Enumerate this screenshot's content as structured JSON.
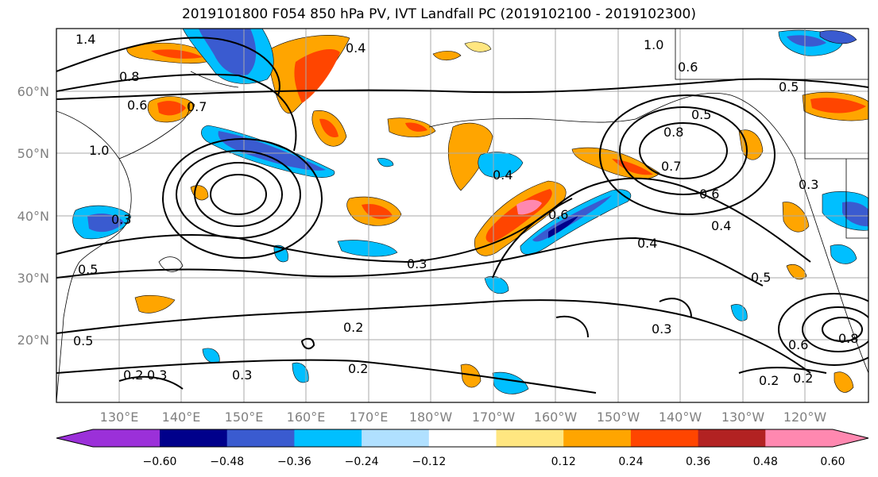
{
  "title": "2019101800 F054 850 hPa PV, IVT Landfall PC (2019102100 - 2019102300)",
  "lat_labels": [
    "60°N",
    "50°N",
    "40°N",
    "30°N",
    "20°N"
  ],
  "lon_labels": [
    "130°E",
    "140°E",
    "150°E",
    "160°E",
    "170°E",
    "180°W",
    "170°W",
    "160°W",
    "150°W",
    "140°W",
    "130°W",
    "120°W"
  ],
  "colorbar": {
    "colors": [
      "#9b30d9",
      "#00008b",
      "#3a5bd0",
      "#00bfff",
      "#b0e0ff",
      "#ffffff",
      "#ffe680",
      "#ffa500",
      "#ff4500",
      "#b22222",
      "#ff88b0"
    ],
    "tick_labels": [
      "−0.60",
      "−0.48",
      "−0.36",
      "−0.24",
      "−0.12",
      "0.12",
      "0.24",
      "0.36",
      "0.48",
      "0.60"
    ]
  },
  "contour_labels": [
    "1.4",
    "0.8",
    "0.6",
    "0.7",
    "1.0",
    "0.5",
    "0.3",
    "0.4",
    "1.0",
    "0.6",
    "0.4",
    "0.5",
    "0.8",
    "0.7",
    "0.6",
    "0.3",
    "0.4",
    "0.3",
    "0.2",
    "0.2",
    "0.3",
    "0.2",
    "0.3",
    "0.5",
    "0.5",
    "0.6",
    "0.8",
    "0.2",
    "0.2",
    "0.3",
    "0.5",
    "0.4",
    "0.6"
  ]
}
